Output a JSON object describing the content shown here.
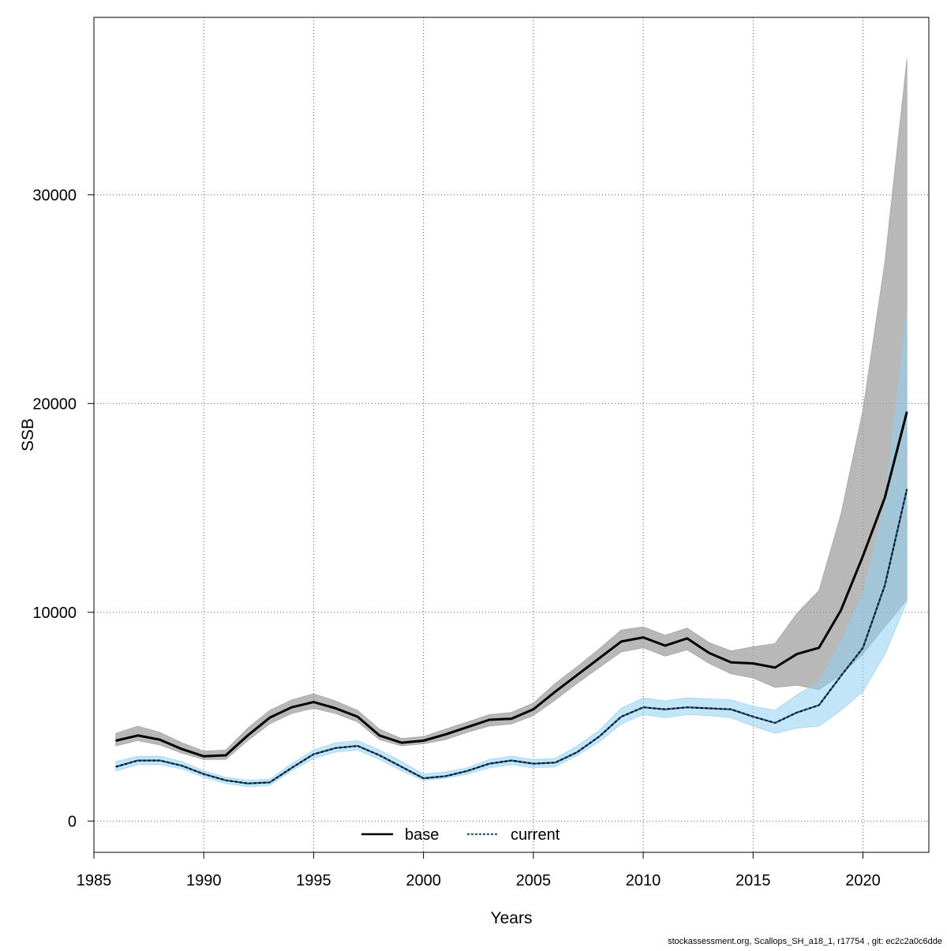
{
  "chart_data": {
    "type": "line",
    "xlabel": "Years",
    "ylabel": "SSB",
    "xlim": [
      1985,
      2023
    ],
    "ylim": [
      -1500,
      38500
    ],
    "x_ticks": [
      1985,
      1990,
      1995,
      2000,
      2005,
      2010,
      2015,
      2020
    ],
    "y_ticks": [
      0,
      10000,
      20000,
      30000
    ],
    "grid": true,
    "legend_placement": "bottom",
    "x": [
      1986,
      1987,
      1988,
      1989,
      1990,
      1991,
      1992,
      1993,
      1994,
      1995,
      1996,
      1997,
      1998,
      1999,
      2000,
      2001,
      2002,
      2003,
      2004,
      2005,
      2006,
      2007,
      2008,
      2009,
      2010,
      2011,
      2012,
      2013,
      2014,
      2015,
      2016,
      2017,
      2018,
      2019,
      2020,
      2021,
      2022
    ],
    "series": [
      {
        "name": "base",
        "line_color": "#000000",
        "band_color": "#9a9a9a",
        "line_style": "solid",
        "values": [
          3850,
          4100,
          3900,
          3450,
          3100,
          3150,
          4100,
          4950,
          5450,
          5700,
          5400,
          5000,
          4100,
          3750,
          3850,
          4150,
          4500,
          4850,
          4900,
          5350,
          6200,
          7000,
          7800,
          8600,
          8800,
          8400,
          8750,
          8050,
          7600,
          7550,
          7350,
          8000,
          8300,
          10100,
          12700,
          15500,
          19600
        ],
        "lower": [
          3600,
          3850,
          3650,
          3250,
          2950,
          2950,
          3850,
          4650,
          5150,
          5400,
          5150,
          4750,
          3900,
          3600,
          3700,
          3900,
          4250,
          4550,
          4650,
          5050,
          5800,
          6600,
          7350,
          8100,
          8300,
          7900,
          8200,
          7550,
          7050,
          6850,
          6400,
          6500,
          6300,
          7000,
          8000,
          9300,
          10600
        ],
        "upper": [
          4200,
          4550,
          4250,
          3750,
          3350,
          3400,
          4450,
          5300,
          5800,
          6100,
          5750,
          5300,
          4400,
          3950,
          4050,
          4400,
          4750,
          5100,
          5200,
          5650,
          6600,
          7400,
          8250,
          9150,
          9300,
          8900,
          9250,
          8550,
          8150,
          8350,
          8500,
          9950,
          11050,
          14700,
          19700,
          26800,
          36500
        ]
      },
      {
        "name": "current",
        "line_color": "#1f5f8b",
        "band_color": "#8fd0f0",
        "line_style": "dashed",
        "values": [
          2600,
          2900,
          2900,
          2650,
          2250,
          1950,
          1800,
          1850,
          2550,
          3200,
          3500,
          3600,
          3150,
          2600,
          2050,
          2150,
          2400,
          2750,
          2900,
          2750,
          2800,
          3300,
          4050,
          5000,
          5450,
          5350,
          5450,
          5400,
          5350,
          5000,
          4700,
          5200,
          5550,
          6950,
          8300,
          11300,
          15900
        ],
        "lower": [
          2400,
          2700,
          2700,
          2500,
          2100,
          1800,
          1650,
          1700,
          2400,
          3000,
          3300,
          3400,
          2950,
          2400,
          1950,
          2050,
          2250,
          2550,
          2700,
          2550,
          2600,
          3150,
          3800,
          4650,
          5100,
          4950,
          5100,
          5050,
          4950,
          4550,
          4200,
          4450,
          4550,
          5300,
          6200,
          8000,
          10500
        ],
        "upper": [
          2850,
          3100,
          3100,
          2850,
          2400,
          2100,
          1950,
          2000,
          2750,
          3400,
          3750,
          3850,
          3400,
          2850,
          2250,
          2350,
          2550,
          2950,
          3100,
          2950,
          3000,
          3600,
          4350,
          5400,
          5900,
          5750,
          5900,
          5850,
          5800,
          5500,
          5300,
          6050,
          6650,
          8600,
          10900,
          15200,
          24400
        ]
      }
    ]
  },
  "footer": {
    "text": "stockassessment.org, Scallops_SH_a18_1, r17754 , git: ec2c2a0c6dde"
  }
}
